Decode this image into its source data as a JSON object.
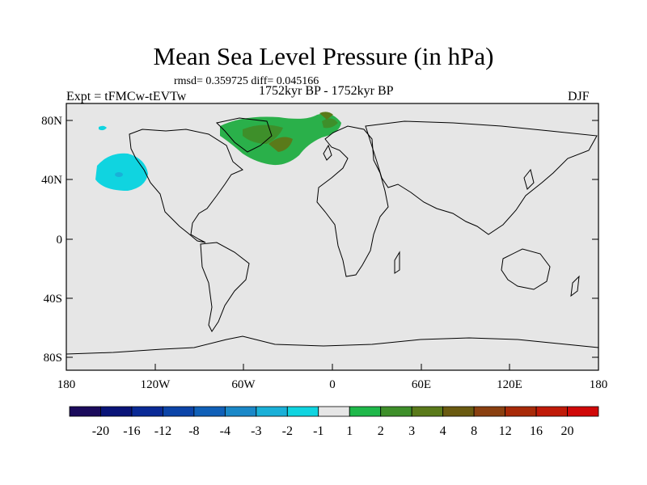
{
  "title": "Mean Sea Level Pressure (in hPa)",
  "stats": "rmsd= 0.359725 diff= 0.045166",
  "experiment": "Expt = tFMCw-tEVTw",
  "period": "1752kyr BP - 1752kyr BP",
  "season": "DJF",
  "lat_labels": [
    "80N",
    "40N",
    "0",
    "40S",
    "80S"
  ],
  "lon_labels": [
    "180",
    "120W",
    "60W",
    "0",
    "60E",
    "120E",
    "180"
  ],
  "colorbar": {
    "labels": [
      "-20",
      "-16",
      "-12",
      "-8",
      "-4",
      "-3",
      "-2",
      "-1",
      "1",
      "2",
      "3",
      "4",
      "8",
      "12",
      "16",
      "20"
    ],
    "colors": [
      "#1b0b5c",
      "#0a1478",
      "#0a2a96",
      "#0c44a8",
      "#1060b8",
      "#1a88c8",
      "#1ab0d8",
      "#10d4e0",
      "#e6e6e6",
      "#1fb84a",
      "#3e8f2a",
      "#5a7a1a",
      "#6a5a10",
      "#8a4010",
      "#a82a08",
      "#c01a08",
      "#d00808"
    ]
  },
  "colors": {
    "background": "#e6e6e6",
    "neg_anomaly": "#10d4e0",
    "pos_anomaly": "#2ab04a"
  }
}
